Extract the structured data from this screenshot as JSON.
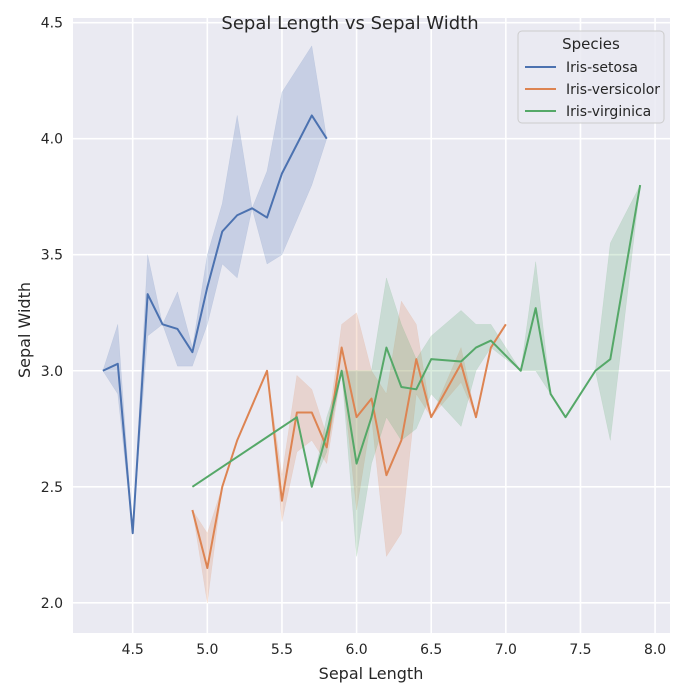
{
  "chart_data": {
    "type": "line",
    "title": "Sepal Length vs Sepal Width",
    "xlabel": "Sepal Length",
    "ylabel": "Sepal Width",
    "xlim": [
      4.1,
      8.1
    ],
    "ylim": [
      1.87,
      4.52
    ],
    "x_ticks": [
      "4.5",
      "5.0",
      "5.5",
      "6.0",
      "6.5",
      "7.0",
      "7.5",
      "8.0"
    ],
    "y_ticks": [
      "2.0",
      "2.5",
      "3.0",
      "3.5",
      "4.0",
      "4.5"
    ],
    "grid": true,
    "legend": {
      "title": "Species",
      "placement": "top-right"
    },
    "series": [
      {
        "name": "Iris-setosa",
        "color": "#4c72b0",
        "points": [
          {
            "x": 4.3,
            "y": 3.0
          },
          {
            "x": 4.4,
            "y": 3.03,
            "lo": 2.9,
            "hi": 3.2
          },
          {
            "x": 4.5,
            "y": 2.3
          },
          {
            "x": 4.6,
            "y": 3.33,
            "lo": 3.15,
            "hi": 3.5
          },
          {
            "x": 4.7,
            "y": 3.2,
            "lo": 3.2,
            "hi": 3.2
          },
          {
            "x": 4.8,
            "y": 3.18,
            "lo": 3.02,
            "hi": 3.34
          },
          {
            "x": 4.9,
            "y": 3.08,
            "lo": 3.02,
            "hi": 3.1
          },
          {
            "x": 5.0,
            "y": 3.36,
            "lo": 3.2,
            "hi": 3.5
          },
          {
            "x": 5.1,
            "y": 3.6,
            "lo": 3.46,
            "hi": 3.72
          },
          {
            "x": 5.2,
            "y": 3.67,
            "lo": 3.4,
            "hi": 4.1
          },
          {
            "x": 5.3,
            "y": 3.7
          },
          {
            "x": 5.4,
            "y": 3.66,
            "lo": 3.46,
            "hi": 3.86
          },
          {
            "x": 5.5,
            "y": 3.85,
            "lo": 3.5,
            "hi": 4.2
          },
          {
            "x": 5.7,
            "y": 4.1,
            "lo": 3.8,
            "hi": 4.4
          },
          {
            "x": 5.8,
            "y": 4.0
          }
        ]
      },
      {
        "name": "Iris-versicolor",
        "color": "#dd8452",
        "points": [
          {
            "x": 4.9,
            "y": 2.4
          },
          {
            "x": 5.0,
            "y": 2.15,
            "lo": 2.0,
            "hi": 2.3
          },
          {
            "x": 5.1,
            "y": 2.5
          },
          {
            "x": 5.2,
            "y": 2.7
          },
          {
            "x": 5.4,
            "y": 3.0
          },
          {
            "x": 5.5,
            "y": 2.44,
            "lo": 2.35,
            "hi": 2.55
          },
          {
            "x": 5.6,
            "y": 2.82,
            "lo": 2.65,
            "hi": 2.98
          },
          {
            "x": 5.7,
            "y": 2.82,
            "lo": 2.7,
            "hi": 2.92
          },
          {
            "x": 5.8,
            "y": 2.67,
            "lo": 2.6,
            "hi": 2.72
          },
          {
            "x": 5.9,
            "y": 3.1,
            "lo": 3.0,
            "hi": 3.2
          },
          {
            "x": 6.0,
            "y": 2.8,
            "lo": 2.4,
            "hi": 3.25
          },
          {
            "x": 6.1,
            "y": 2.88,
            "lo": 2.8,
            "hi": 3.0
          },
          {
            "x": 6.2,
            "y": 2.55,
            "lo": 2.2,
            "hi": 2.9
          },
          {
            "x": 6.3,
            "y": 2.7,
            "lo": 2.3,
            "hi": 3.3
          },
          {
            "x": 6.4,
            "y": 3.05,
            "lo": 2.9,
            "hi": 3.2
          },
          {
            "x": 6.5,
            "y": 2.8
          },
          {
            "x": 6.7,
            "y": 3.03,
            "lo": 2.95,
            "hi": 3.1
          },
          {
            "x": 6.8,
            "y": 2.8
          },
          {
            "x": 6.9,
            "y": 3.1
          },
          {
            "x": 7.0,
            "y": 3.2
          }
        ]
      },
      {
        "name": "Iris-virginica",
        "color": "#55a868",
        "points": [
          {
            "x": 4.9,
            "y": 2.5
          },
          {
            "x": 5.6,
            "y": 2.8
          },
          {
            "x": 5.7,
            "y": 2.5
          },
          {
            "x": 5.8,
            "y": 2.73,
            "lo": 2.65,
            "hi": 2.8
          },
          {
            "x": 5.9,
            "y": 3.0
          },
          {
            "x": 6.0,
            "y": 2.6,
            "lo": 2.2,
            "hi": 3.0
          },
          {
            "x": 6.1,
            "y": 2.8,
            "lo": 2.6,
            "hi": 3.0
          },
          {
            "x": 6.2,
            "y": 3.1,
            "lo": 2.8,
            "hi": 3.4
          },
          {
            "x": 6.3,
            "y": 2.93,
            "lo": 2.7,
            "hi": 3.2
          },
          {
            "x": 6.4,
            "y": 2.92,
            "lo": 2.75,
            "hi": 3.05
          },
          {
            "x": 6.5,
            "y": 3.05,
            "lo": 2.9,
            "hi": 3.15
          },
          {
            "x": 6.7,
            "y": 3.04,
            "lo": 2.76,
            "hi": 3.26
          },
          {
            "x": 6.8,
            "y": 3.1,
            "lo": 3.0,
            "hi": 3.2
          },
          {
            "x": 6.9,
            "y": 3.13,
            "lo": 3.1,
            "hi": 3.2
          },
          {
            "x": 7.1,
            "y": 3.0
          },
          {
            "x": 7.2,
            "y": 3.27,
            "lo": 3.0,
            "hi": 3.47
          },
          {
            "x": 7.3,
            "y": 2.9
          },
          {
            "x": 7.4,
            "y": 2.8
          },
          {
            "x": 7.6,
            "y": 3.0
          },
          {
            "x": 7.7,
            "y": 3.05,
            "lo": 2.7,
            "hi": 3.55
          },
          {
            "x": 7.9,
            "y": 3.8
          }
        ]
      }
    ]
  }
}
